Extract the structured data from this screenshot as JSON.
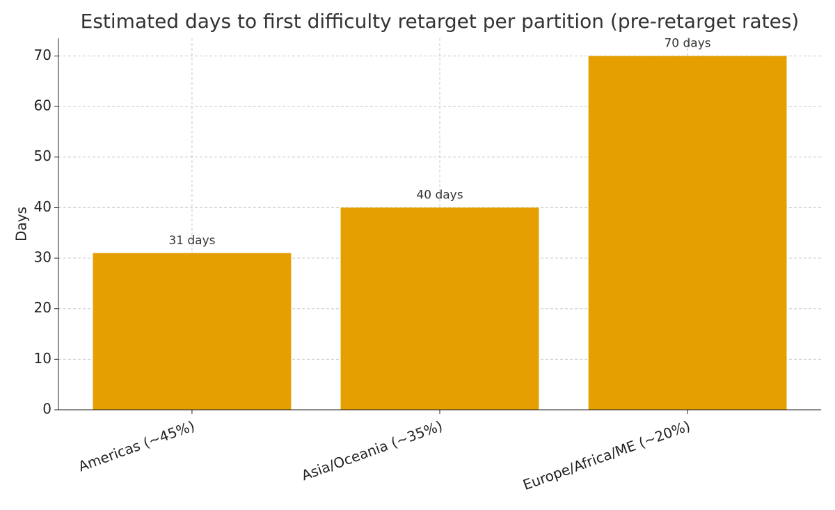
{
  "chart_data": {
    "type": "bar",
    "title": "Estimated days to first difficulty retarget per partition (pre-retarget rates)",
    "ylabel": "Days",
    "categories": [
      "Americas (~45%)",
      "Asia/Oceania (~35%)",
      "Europe/Africa/ME (~20%)"
    ],
    "values": [
      31,
      40,
      70
    ],
    "value_labels": [
      "31 days",
      "40 days",
      "70 days"
    ],
    "color": "#e69f00",
    "ylim": [
      0,
      73.5
    ],
    "yticks": [
      0,
      10,
      20,
      30,
      40,
      50,
      60,
      70
    ],
    "grid": true
  }
}
